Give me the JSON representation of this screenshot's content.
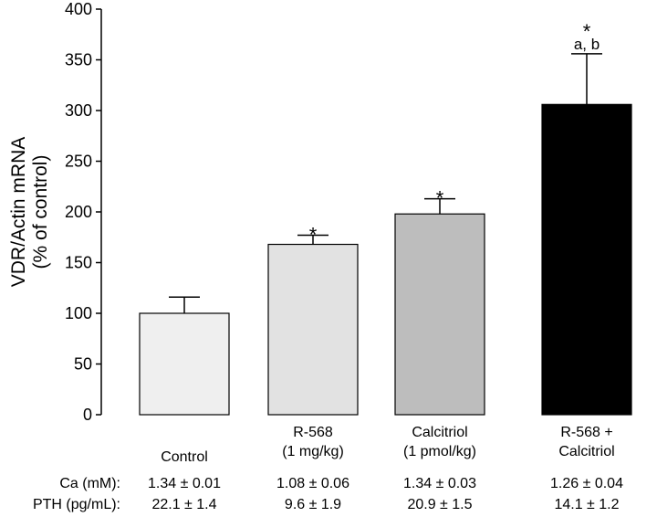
{
  "chart_data": {
    "type": "bar",
    "ylabel_line1": "VDR/Actin mRNA",
    "ylabel_line2": "(% of control)",
    "ylim": [
      0,
      400
    ],
    "yticks": [
      0,
      50,
      100,
      150,
      200,
      250,
      300,
      350,
      400
    ],
    "categories": [
      {
        "lines": [
          "Control"
        ]
      },
      {
        "lines": [
          "R-568",
          "(1 mg/kg)"
        ]
      },
      {
        "lines": [
          "Calcitriol",
          "(1 pmol/kg)"
        ]
      },
      {
        "lines": [
          "R-568 +",
          "Calcitriol"
        ]
      }
    ],
    "values": [
      100,
      168,
      198,
      306
    ],
    "errors": [
      16,
      9,
      15,
      50
    ],
    "bar_colors": [
      "#efefef",
      "#e2e2e2",
      "#bdbdbd",
      "#000000"
    ],
    "annotations": [
      {
        "bar": 1,
        "labels": [
          "*"
        ]
      },
      {
        "bar": 2,
        "labels": [
          "*"
        ]
      },
      {
        "bar": 3,
        "labels": [
          "*",
          "a, b"
        ]
      }
    ]
  },
  "table": {
    "rows": [
      {
        "label": "Ca (mM):",
        "values": [
          "1.34 ± 0.01",
          "1.08 ± 0.06",
          "1.34 ± 0.03",
          "1.26 ± 0.04"
        ]
      },
      {
        "label": "PTH (pg/mL):",
        "values": [
          "22.1 ± 1.4",
          "9.6 ± 1.9",
          "20.9 ± 1.5",
          "14.1 ± 1.2"
        ]
      }
    ]
  }
}
